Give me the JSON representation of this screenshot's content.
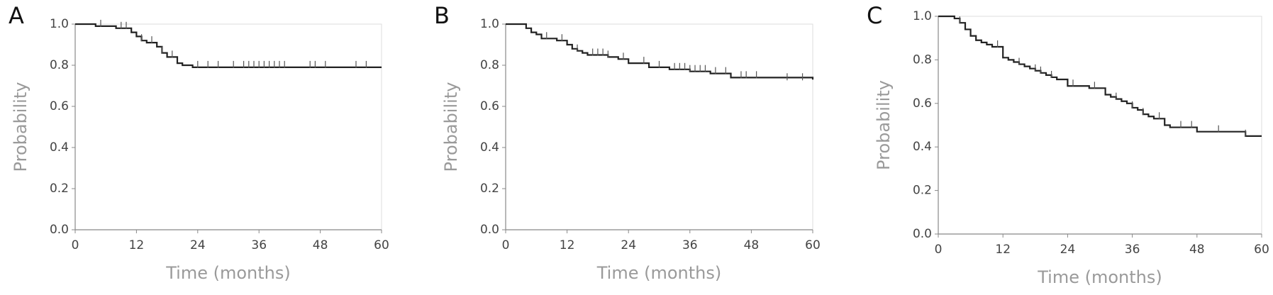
{
  "chart_data": [
    {
      "type": "line",
      "panel": "A",
      "x_label": "Time (months)",
      "y_label": "Probability",
      "xlim": [
        0,
        60
      ],
      "ylim": [
        0,
        1
      ],
      "xticks": [
        0,
        12,
        24,
        36,
        48,
        60
      ],
      "yticks": [
        {
          "value": 0,
          "label": "0.0"
        },
        0.2,
        0.4,
        0.6,
        0.8,
        {
          "value": 1,
          "label": "1.0"
        }
      ],
      "series": [
        {
          "color": "#222222",
          "x": [
            0,
            4,
            8,
            11,
            12,
            13,
            14,
            16,
            17,
            18,
            20,
            21,
            23,
            60
          ],
          "values": [
            1.0,
            0.99,
            0.98,
            0.96,
            0.94,
            0.92,
            0.91,
            0.89,
            0.86,
            0.84,
            0.81,
            0.8,
            0.79,
            0.79
          ]
        }
      ],
      "censored": {
        "x": [
          5,
          9,
          10,
          13,
          15,
          17,
          19,
          24,
          26,
          28,
          31,
          33,
          34,
          35,
          36,
          37,
          38,
          39,
          40,
          41,
          46,
          47,
          49,
          55,
          57
        ],
        "values": [
          0.99,
          0.98,
          0.98,
          0.92,
          0.91,
          0.86,
          0.84,
          0.79,
          0.79,
          0.79,
          0.79,
          0.79,
          0.79,
          0.79,
          0.79,
          0.79,
          0.79,
          0.79,
          0.79,
          0.79,
          0.79,
          0.79,
          0.79,
          0.79,
          0.79
        ]
      }
    },
    {
      "type": "line",
      "panel": "B",
      "x_label": "Time (months)",
      "y_label": "Probability",
      "xlim": [
        0,
        60
      ],
      "ylim": [
        0,
        1
      ],
      "xticks": [
        0,
        12,
        24,
        36,
        48,
        60
      ],
      "yticks": [
        {
          "value": 0,
          "label": "0.0"
        },
        0.2,
        0.4,
        0.6,
        0.8,
        {
          "value": 1,
          "label": "1.0"
        }
      ],
      "series": [
        {
          "color": "#222222",
          "x": [
            0,
            4,
            5,
            6,
            7,
            10,
            12,
            13,
            14,
            15,
            16,
            20,
            22,
            24,
            28,
            32,
            36,
            40,
            44,
            60
          ],
          "values": [
            1.0,
            0.98,
            0.96,
            0.95,
            0.93,
            0.92,
            0.9,
            0.88,
            0.87,
            0.86,
            0.85,
            0.84,
            0.83,
            0.81,
            0.79,
            0.78,
            0.77,
            0.76,
            0.74,
            0.73
          ]
        }
      ],
      "censored": {
        "x": [
          8,
          11,
          14,
          17,
          18,
          19,
          20,
          23,
          27,
          30,
          33,
          34,
          35,
          36,
          37,
          38,
          39,
          41,
          43,
          46,
          47,
          49,
          55,
          58
        ],
        "values": [
          0.93,
          0.92,
          0.87,
          0.85,
          0.85,
          0.85,
          0.84,
          0.83,
          0.81,
          0.79,
          0.78,
          0.78,
          0.78,
          0.77,
          0.77,
          0.77,
          0.77,
          0.76,
          0.76,
          0.74,
          0.74,
          0.74,
          0.73,
          0.73
        ]
      }
    },
    {
      "type": "line",
      "panel": "C",
      "x_label": "Time (months)",
      "y_label": "Probability",
      "xlim": [
        0,
        60
      ],
      "ylim": [
        0,
        1
      ],
      "xticks": [
        0,
        12,
        24,
        36,
        48,
        60
      ],
      "yticks": [
        {
          "value": 0,
          "label": "0.0"
        },
        0.2,
        0.4,
        0.6,
        0.8,
        {
          "value": 1,
          "label": "1.0"
        }
      ],
      "series": [
        {
          "color": "#222222",
          "x": [
            0,
            3,
            4,
            5,
            6,
            7,
            8,
            9,
            10,
            12,
            13,
            14,
            15,
            16,
            17,
            18,
            19,
            20,
            21,
            22,
            24,
            28,
            31,
            32,
            33,
            34,
            35,
            36,
            37,
            38,
            39,
            40,
            42,
            43,
            48,
            57,
            60
          ],
          "values": [
            1.0,
            0.99,
            0.97,
            0.94,
            0.91,
            0.89,
            0.88,
            0.87,
            0.86,
            0.81,
            0.8,
            0.79,
            0.78,
            0.77,
            0.76,
            0.75,
            0.74,
            0.73,
            0.72,
            0.71,
            0.68,
            0.67,
            0.64,
            0.63,
            0.62,
            0.61,
            0.6,
            0.58,
            0.57,
            0.55,
            0.54,
            0.53,
            0.5,
            0.49,
            0.47,
            0.45,
            0.45
          ]
        }
      ],
      "censored": {
        "x": [
          4,
          11,
          15,
          18,
          19,
          21,
          25,
          29,
          33,
          36,
          38,
          41,
          45,
          47,
          52,
          57
        ],
        "values": [
          0.97,
          0.86,
          0.78,
          0.75,
          0.74,
          0.72,
          0.68,
          0.67,
          0.62,
          0.58,
          0.55,
          0.53,
          0.49,
          0.49,
          0.47,
          0.45
        ]
      }
    }
  ]
}
